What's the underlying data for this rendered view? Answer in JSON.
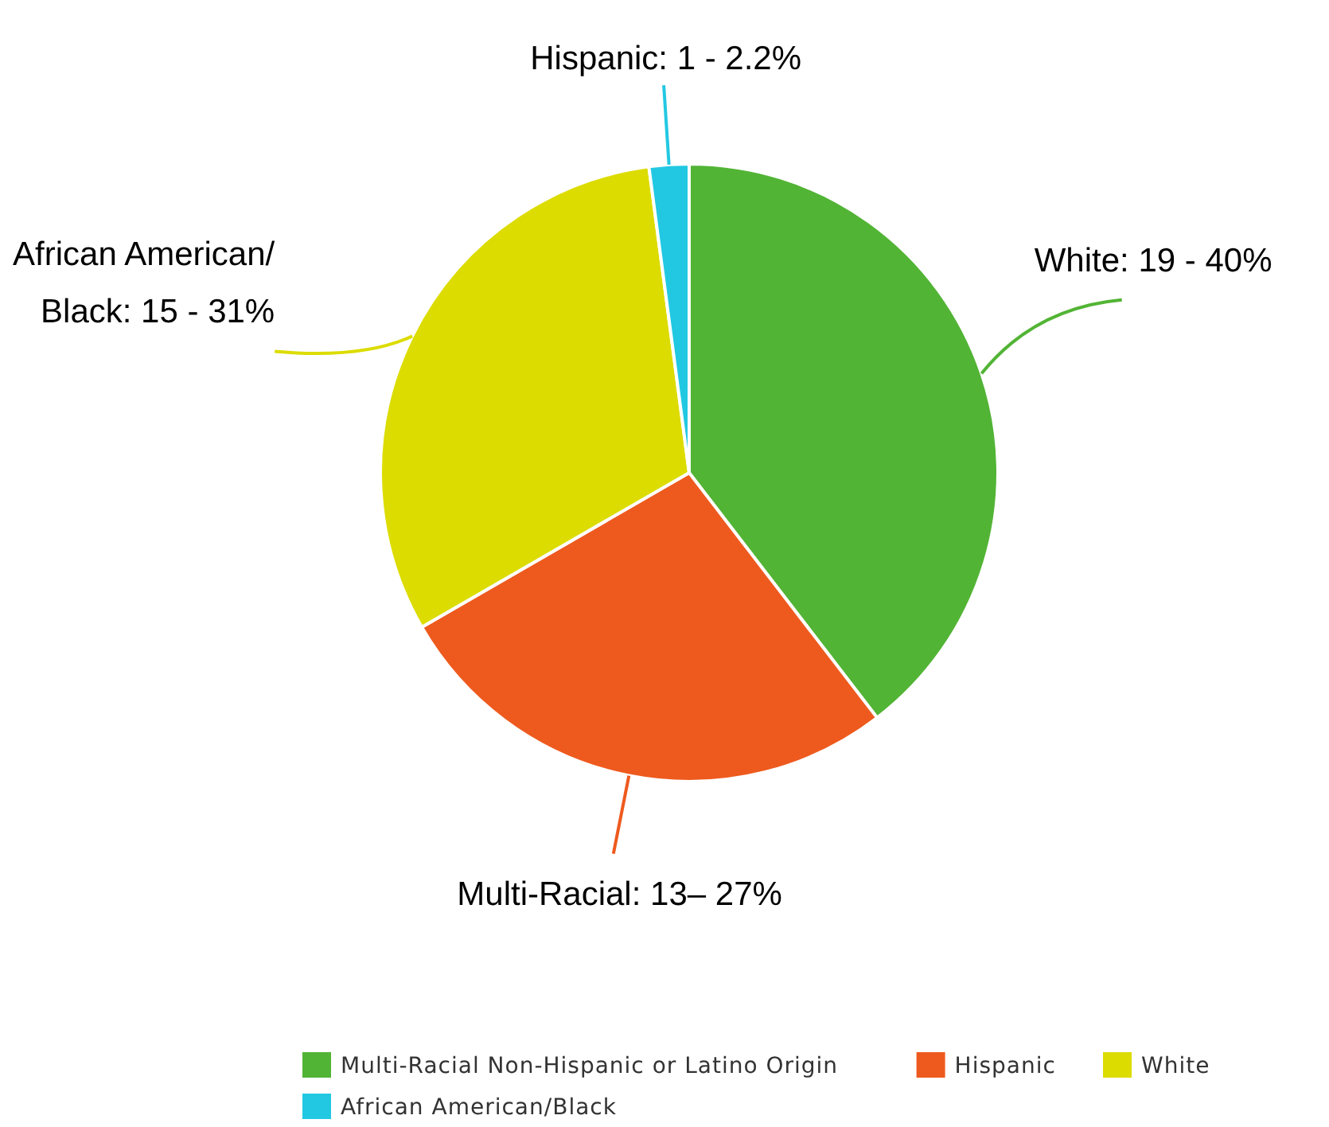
{
  "chart_data": {
    "type": "pie",
    "categories": [
      "Multi-Racial Non-Hispanic or Latino Origin",
      "Hispanic",
      "White",
      "African American/Black"
    ],
    "values": [
      19,
      13,
      15,
      1
    ],
    "colors": [
      "#52b435",
      "#ee5a1e",
      "#dcdc00",
      "#22c8e2"
    ],
    "value_labels": [
      "White: 19 - 40%",
      "Multi-Racial: 13– 27%",
      "African American/\nBlack: 15 - 31%",
      "Hispanic: 1 - 2.2%"
    ],
    "legend": "bottom"
  }
}
